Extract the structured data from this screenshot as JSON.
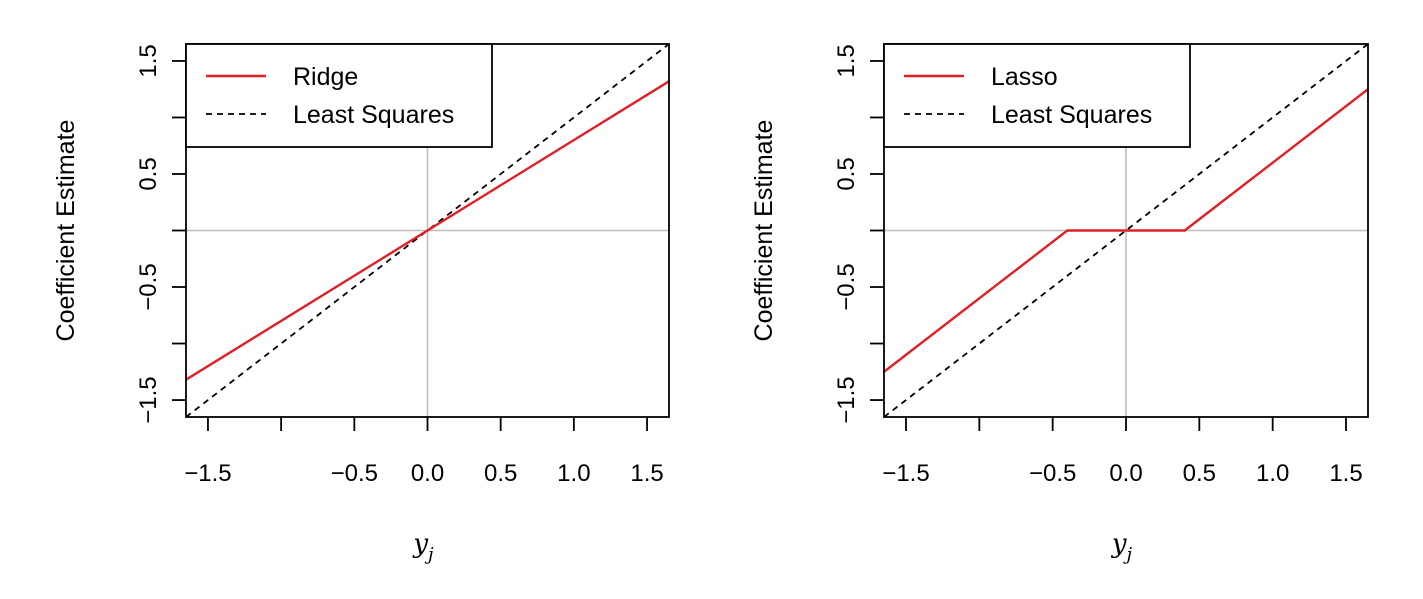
{
  "chart_data": [
    {
      "type": "line",
      "title": "",
      "xlabel": "y_j",
      "xlabel_var": "y",
      "xlabel_sub": "j",
      "ylabel": "Coefficient Estimate",
      "xlim": [
        -1.65,
        1.65
      ],
      "ylim": [
        -1.65,
        1.65
      ],
      "x_ticks": [
        -1.5,
        -1.0,
        -0.5,
        0.0,
        0.5,
        1.0,
        1.5
      ],
      "x_tick_labels": [
        "−1.5",
        "",
        "−0.5",
        "0.0",
        "0.5",
        "1.0",
        "1.5"
      ],
      "y_ticks": [
        -1.5,
        -1.0,
        -0.5,
        0.0,
        0.5,
        1.0,
        1.5
      ],
      "y_tick_labels": [
        "−1.5",
        "",
        "−0.5",
        "",
        "0.5",
        "",
        "1.5"
      ],
      "reference_lines": {
        "x": 0,
        "y": 0,
        "color": "#bebebe"
      },
      "legend_position": "top-left",
      "series": [
        {
          "name": "Ridge",
          "color": "#df2027",
          "style": "solid",
          "x": [
            -1.65,
            1.65
          ],
          "y": [
            -1.32,
            1.32
          ]
        },
        {
          "name": "Least Squares",
          "color": "#000000",
          "style": "dashed",
          "x": [
            -1.65,
            1.65
          ],
          "y": [
            -1.65,
            1.65
          ]
        }
      ]
    },
    {
      "type": "line",
      "title": "",
      "xlabel": "y_j",
      "xlabel_var": "y",
      "xlabel_sub": "j",
      "ylabel": "Coefficient Estimate",
      "xlim": [
        -1.65,
        1.65
      ],
      "ylim": [
        -1.65,
        1.65
      ],
      "x_ticks": [
        -1.5,
        -1.0,
        -0.5,
        0.0,
        0.5,
        1.0,
        1.5
      ],
      "x_tick_labels": [
        "−1.5",
        "",
        "−0.5",
        "0.0",
        "0.5",
        "1.0",
        "1.5"
      ],
      "y_ticks": [
        -1.5,
        -1.0,
        -0.5,
        0.0,
        0.5,
        1.0,
        1.5
      ],
      "y_tick_labels": [
        "−1.5",
        "",
        "−0.5",
        "",
        "0.5",
        "",
        "1.5"
      ],
      "reference_lines": {
        "x": 0,
        "y": 0,
        "color": "#bebebe"
      },
      "legend_position": "top-left",
      "series": [
        {
          "name": "Lasso",
          "color": "#df2027",
          "style": "solid",
          "x": [
            -1.65,
            -0.4,
            0.4,
            1.65
          ],
          "y": [
            -1.25,
            0,
            0,
            1.25
          ]
        },
        {
          "name": "Least Squares",
          "color": "#000000",
          "style": "dashed",
          "x": [
            -1.65,
            1.65
          ],
          "y": [
            -1.65,
            1.65
          ]
        }
      ]
    }
  ]
}
